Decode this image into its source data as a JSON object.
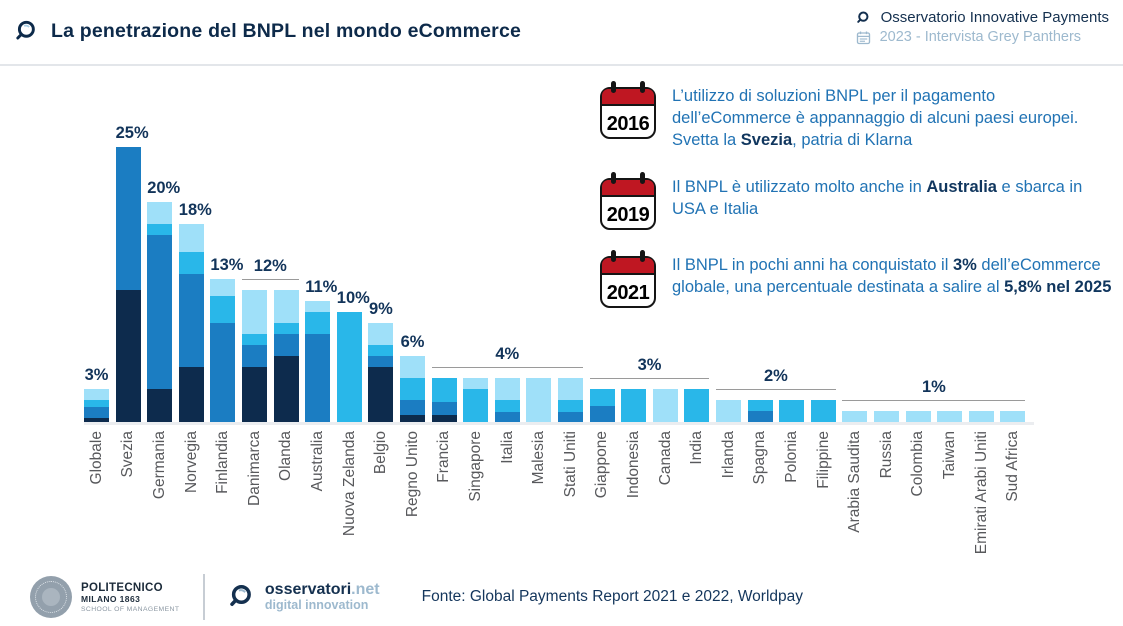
{
  "header": {
    "title": "La penetrazione del BNPL nel mondo eCommerce",
    "brand": "Osservatorio Innovative Payments",
    "edition": "2023 - Intervista Grey Panthers"
  },
  "callouts": [
    {
      "year": "2016",
      "segments": [
        {
          "text": "L’utilizzo di soluzioni BNPL per il pagamento dell’eCommerce è appannaggio di alcuni paesi europei. Svetta la "
        },
        {
          "text": "Svezia",
          "bold": true
        },
        {
          "text": ", patria di Klarna"
        }
      ]
    },
    {
      "year": "2019",
      "segments": [
        {
          "text": "Il BNPL è utilizzato molto anche in "
        },
        {
          "text": "Australia",
          "bold": true
        },
        {
          "text": " e sbarca in USA e Italia"
        }
      ]
    },
    {
      "year": "2021",
      "segments": [
        {
          "text": "Il BNPL in pochi anni ha conquistato il "
        },
        {
          "text": "3%",
          "bold": true
        },
        {
          "text": " dell’eCommerce globale, una percentuale destinata a salire al "
        },
        {
          "text": "5,8% nel 2025",
          "bold": true
        }
      ]
    }
  ],
  "chart_data": {
    "type": "bar",
    "stacked": true,
    "unit": "%",
    "ylim": [
      0,
      27
    ],
    "grid": false,
    "legend": "none",
    "segment_order": [
      "navy",
      "blue",
      "cyan",
      "light"
    ],
    "segment_colors": {
      "navy": "#0d2b4d",
      "blue": "#1b7dc2",
      "cyan": "#29b7e9",
      "light": "#9fe0f9"
    },
    "categories": [
      "Globale",
      "Svezia",
      "Germania",
      "Norvegia",
      "Finlandia",
      "Danimarca",
      "Olanda",
      "Australia",
      "Nuova Zelanda",
      "Belgio",
      "Regno Unito",
      "Francia",
      "Singapore",
      "Italia",
      "Malesia",
      "Stati Uniti",
      "Giappone",
      "Indonesia",
      "Canada",
      "India",
      "Irlanda",
      "Spagna",
      "Polonia",
      "Filippine",
      "Arabia Saudita",
      "Russia",
      "Colombia",
      "Taiwan",
      "Emirati Arabi Uniti",
      "Sud Africa"
    ],
    "totals": [
      3,
      25,
      20,
      18,
      13,
      12,
      12,
      11,
      10,
      9,
      6,
      4,
      4,
      4,
      4,
      4,
      3,
      3,
      3,
      3,
      2,
      2,
      2,
      2,
      1,
      1,
      1,
      1,
      1,
      1
    ],
    "bars": [
      {
        "name": "Globale",
        "total": 3,
        "segments": [
          0.4,
          1.0,
          0.6,
          1.0
        ]
      },
      {
        "name": "Svezia",
        "total": 25,
        "segments": [
          12,
          13,
          0,
          0
        ]
      },
      {
        "name": "Germania",
        "total": 20,
        "segments": [
          3,
          14,
          1,
          2
        ]
      },
      {
        "name": "Norvegia",
        "total": 18,
        "segments": [
          5,
          8.5,
          2,
          2.5
        ]
      },
      {
        "name": "Finlandia",
        "total": 13,
        "segments": [
          0,
          9,
          2.5,
          1.5
        ]
      },
      {
        "name": "Danimarca",
        "total": 12,
        "segments": [
          5,
          2,
          1,
          4
        ]
      },
      {
        "name": "Olanda",
        "total": 12,
        "segments": [
          6,
          2,
          1,
          3
        ]
      },
      {
        "name": "Australia",
        "total": 11,
        "segments": [
          0,
          8,
          2,
          1
        ]
      },
      {
        "name": "Nuova Zelanda",
        "total": 10,
        "segments": [
          0,
          0,
          10,
          0
        ]
      },
      {
        "name": "Belgio",
        "total": 9,
        "segments": [
          5,
          1,
          1,
          2
        ]
      },
      {
        "name": "Regno Unito",
        "total": 6,
        "segments": [
          0.6,
          1.4,
          2,
          2
        ]
      },
      {
        "name": "Francia",
        "total": 4,
        "segments": [
          0.6,
          1.2,
          2.2,
          0
        ]
      },
      {
        "name": "Singapore",
        "total": 4,
        "segments": [
          0,
          0,
          3,
          1
        ]
      },
      {
        "name": "Italia",
        "total": 4,
        "segments": [
          0,
          0.9,
          1.1,
          2
        ]
      },
      {
        "name": "Malesia",
        "total": 4,
        "segments": [
          0,
          0,
          0,
          4
        ]
      },
      {
        "name": "Stati Uniti",
        "total": 4,
        "segments": [
          0,
          0.9,
          1.1,
          2
        ]
      },
      {
        "name": "Giappone",
        "total": 3,
        "segments": [
          0,
          1.5,
          1.5,
          0
        ]
      },
      {
        "name": "Indonesia",
        "total": 3,
        "segments": [
          0,
          0,
          3,
          0
        ]
      },
      {
        "name": "Canada",
        "total": 3,
        "segments": [
          0,
          0,
          0,
          3
        ]
      },
      {
        "name": "India",
        "total": 3,
        "segments": [
          0,
          0,
          3,
          0
        ]
      },
      {
        "name": "Irlanda",
        "total": 2,
        "segments": [
          0,
          0,
          0,
          2
        ]
      },
      {
        "name": "Spagna",
        "total": 2,
        "segments": [
          0,
          1,
          1,
          0
        ]
      },
      {
        "name": "Polonia",
        "total": 2,
        "segments": [
          0,
          0,
          2,
          0
        ]
      },
      {
        "name": "Filippine",
        "total": 2,
        "segments": [
          0,
          0,
          2,
          0
        ]
      },
      {
        "name": "Arabia Saudita",
        "total": 1,
        "segments": [
          0,
          0,
          0,
          1
        ]
      },
      {
        "name": "Russia",
        "total": 1,
        "segments": [
          0,
          0,
          0,
          1
        ]
      },
      {
        "name": "Colombia",
        "total": 1,
        "segments": [
          0,
          0,
          0,
          1
        ]
      },
      {
        "name": "Taiwan",
        "total": 1,
        "segments": [
          0,
          0,
          0,
          1
        ]
      },
      {
        "name": "Emirati Arabi Uniti",
        "total": 1,
        "segments": [
          0,
          0,
          0,
          1
        ]
      },
      {
        "name": "Sud Africa",
        "total": 1,
        "segments": [
          0,
          0,
          0,
          1
        ]
      }
    ],
    "labels": [
      {
        "from": 0,
        "to": 0,
        "text": "3%",
        "line": false
      },
      {
        "from": 1,
        "to": 1,
        "text": "25%",
        "line": false
      },
      {
        "from": 2,
        "to": 2,
        "text": "20%",
        "line": false
      },
      {
        "from": 3,
        "to": 3,
        "text": "18%",
        "line": false
      },
      {
        "from": 4,
        "to": 4,
        "text": "13%",
        "line": false
      },
      {
        "from": 5,
        "to": 6,
        "text": "12%",
        "line": true
      },
      {
        "from": 7,
        "to": 7,
        "text": "11%",
        "line": false
      },
      {
        "from": 8,
        "to": 8,
        "text": "10%",
        "line": false
      },
      {
        "from": 9,
        "to": 9,
        "text": "9%",
        "line": false
      },
      {
        "from": 10,
        "to": 10,
        "text": "6%",
        "line": false
      },
      {
        "from": 11,
        "to": 15,
        "text": "4%",
        "line": true
      },
      {
        "from": 16,
        "to": 19,
        "text": "3%",
        "line": true
      },
      {
        "from": 20,
        "to": 23,
        "text": "2%",
        "line": true
      },
      {
        "from": 24,
        "to": 29,
        "text": "1%",
        "line": true
      }
    ]
  },
  "footer": {
    "source": "Fonte: Global Payments Report 2021 e 2022, Worldpay",
    "polimi": {
      "line1": "POLITECNICO",
      "line2": "MILANO 1863",
      "line3": "SCHOOL OF MANAGEMENT"
    },
    "osservatori": {
      "name": "osservatori",
      "tld": ".net",
      "tagline": "digital innovation"
    }
  },
  "colors": {
    "title": "#0d2a4a",
    "body_text": "#2173b4",
    "bold_text": "#10365e",
    "axis_label": "#58595c",
    "value_label": "#12345a",
    "calendar_red": "#bf1722",
    "light_brand": "#9db9ce"
  }
}
